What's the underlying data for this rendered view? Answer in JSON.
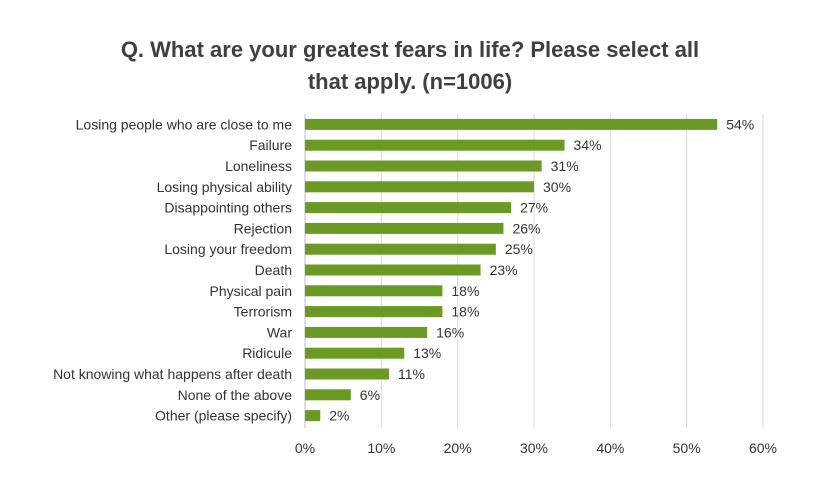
{
  "chart_data": {
    "type": "bar",
    "orientation": "horizontal",
    "title_lines": [
      "Q. What are your greatest fears in life? Please select all",
      "that apply. (n=1006)"
    ],
    "categories": [
      "Losing people who are close to me",
      "Failure",
      "Loneliness",
      "Losing physical ability",
      "Disappointing others",
      "Rejection",
      "Losing your freedom",
      "Death",
      "Physical pain",
      "Terrorism",
      "War",
      "Ridicule",
      "Not knowing what happens after death",
      "None of the above",
      "Other (please specify)"
    ],
    "values": [
      54,
      34,
      31,
      30,
      27,
      26,
      25,
      23,
      18,
      18,
      16,
      13,
      11,
      6,
      2
    ],
    "value_labels": [
      "54%",
      "34%",
      "31%",
      "30%",
      "27%",
      "26%",
      "25%",
      "23%",
      "18%",
      "18%",
      "16%",
      "13%",
      "11%",
      "6%",
      "2%"
    ],
    "xlim": [
      0,
      60
    ],
    "xticks": [
      0,
      10,
      20,
      30,
      40,
      50,
      60
    ],
    "xtick_labels": [
      "0%",
      "10%",
      "20%",
      "30%",
      "40%",
      "50%",
      "60%"
    ],
    "grid": "vertical",
    "legend": "none",
    "bar_color": "#6a9a23",
    "grid_color": "#d9d9d9"
  }
}
